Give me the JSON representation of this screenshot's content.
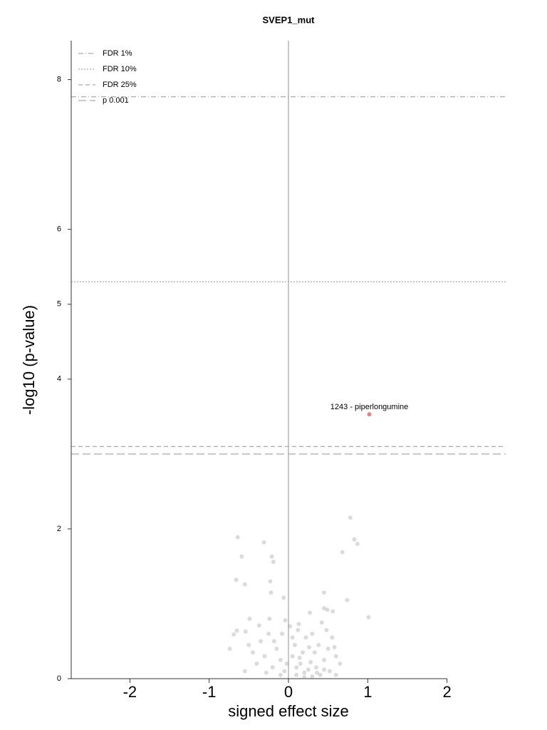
{
  "chart_data": {
    "type": "scatter",
    "title": "SVEP1_mut",
    "x_label": "signed effect size",
    "y_label": "-log10 (p-value)",
    "xlim": [
      -2.74,
      2.74
    ],
    "ylim": [
      0,
      8.52
    ],
    "xticks": [
      -2,
      -1,
      0,
      1,
      2
    ],
    "yticks": [
      0,
      2,
      4,
      5,
      6,
      8
    ],
    "vlines": [
      0
    ],
    "legend": "upper left",
    "thresholds": [
      {
        "name": "FDR 1%",
        "value": 7.77,
        "style": "dashdot"
      },
      {
        "name": "FDR 10%",
        "value": 5.3,
        "style": "dotted"
      },
      {
        "name": "FDR 25%",
        "value": 3.1,
        "style": "dashed"
      },
      {
        "name": "p 0.001",
        "value": 3.0,
        "style": "longdash"
      }
    ],
    "points": {
      "color": "#999999",
      "x": [
        -0.64,
        -0.59,
        -0.31,
        -0.21,
        -0.19,
        -0.66,
        -0.55,
        -0.23,
        -0.22,
        -0.06,
        0.45,
        0.78,
        0.83,
        0.87,
        0.68,
        0.74,
        1.01,
        -0.24,
        -0.49,
        -0.37,
        -0.65,
        -0.69,
        -0.74,
        -0.54,
        0.49,
        0.56,
        0.45,
        0.27,
        -0.04,
        0.13,
        0.1,
        0.2,
        0.25,
        0.3,
        0.15,
        0.05,
        -0.05,
        -0.1,
        0.35,
        0.4,
        0.28,
        0.18,
        0.08,
        -0.15,
        -0.2,
        -0.3,
        -0.35,
        -0.25,
        -0.4,
        -0.45,
        0.45,
        0.5,
        0.55,
        0.6,
        0.48,
        0.38,
        0.22,
        0.12,
        -0.08,
        0.02,
        0.3,
        0.42,
        0.52,
        0.6,
        0.65,
        -0.5,
        -0.55,
        -0.1,
        0.2,
        0.33,
        0.1,
        -0.02,
        0.26,
        0.14,
        0.36,
        0.45,
        0.58,
        -0.18,
        -0.28,
        0.05
      ],
      "y": [
        1.89,
        1.63,
        1.82,
        1.63,
        1.56,
        1.32,
        1.26,
        1.3,
        1.15,
        1.08,
        1.15,
        2.15,
        1.86,
        1.8,
        1.69,
        1.05,
        0.82,
        0.8,
        0.8,
        0.71,
        0.64,
        0.59,
        0.4,
        0.63,
        0.92,
        0.9,
        0.94,
        0.88,
        0.78,
        0.73,
        0.05,
        0.08,
        0.12,
        0.03,
        0.2,
        0.3,
        0.1,
        0.25,
        0.15,
        0.05,
        0.22,
        0.35,
        0.45,
        0.4,
        0.15,
        0.3,
        0.5,
        0.6,
        0.2,
        0.35,
        0.25,
        0.4,
        0.55,
        0.3,
        0.65,
        0.45,
        0.55,
        0.65,
        0.6,
        0.7,
        0.6,
        0.75,
        0.1,
        0.05,
        0.2,
        0.45,
        0.1,
        0.05,
        0.02,
        0.35,
        0.15,
        0.2,
        0.42,
        0.28,
        0.08,
        0.12,
        0.42,
        0.5,
        0.08,
        0.55
      ]
    },
    "highlight": {
      "color": "#f08080",
      "x": [
        1.02
      ],
      "y": [
        3.53
      ],
      "labels": [
        "1243 - piperlongumine"
      ]
    }
  }
}
